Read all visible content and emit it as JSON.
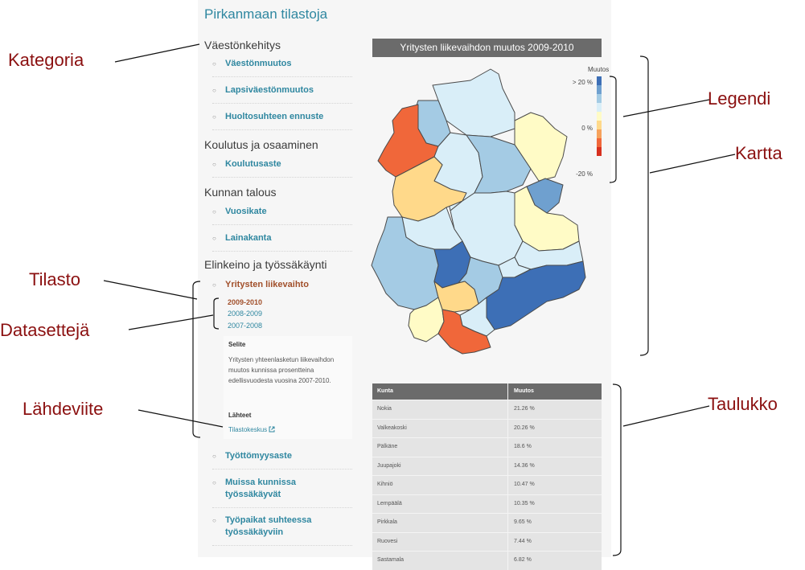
{
  "page": {
    "title": "Pirkanmaan tilastoja"
  },
  "sidebar": {
    "categories": [
      {
        "name": "Väestönkehitys"
      },
      {
        "name": "Koulutus ja osaaminen"
      },
      {
        "name": "Kunnan talous"
      },
      {
        "name": "Elinkeino ja työssäkäynti"
      }
    ],
    "items": [
      {
        "label": "Väestönmuutos"
      },
      {
        "label": "Lapsiväestönmuutos"
      },
      {
        "label": "Huoltosuhteen ennuste"
      },
      {
        "label": "Koulutusaste"
      },
      {
        "label": "Vuosikate"
      },
      {
        "label": "Lainakanta"
      },
      {
        "label": "Yritysten liikevaihto"
      },
      {
        "label": "Työttömyysaste"
      },
      {
        "label": "Muissa kunnissa työssäkäyvät"
      },
      {
        "label": "Työpaikat suhteessa työssäkäyviin"
      }
    ],
    "datasets": [
      "2009-2010",
      "2008-2009",
      "2007-2008"
    ],
    "selected_dataset": "2009-2010",
    "selite_heading": "Selite",
    "selite_text": "Yritysten yhteenlasketun liikevaihdon muutos kunnissa prosentteina edellisvuodesta vuosina 2007-2010.",
    "sources_heading": "Lähteet",
    "source_link": "Tilastokeskus",
    "external_link_icon": "external-link-icon"
  },
  "map": {
    "title": "Yritysten liikevaihdon muutos 2009-2010",
    "legend_title": "Muutos",
    "legend_labels": {
      "high": "> 20 %",
      "mid": "0 %",
      "low": "-20 %"
    },
    "legend_colors": [
      "#3d6fb6",
      "#6fa0cf",
      "#a4cbe4",
      "#d9eef8",
      "#fffbc6",
      "#ffd98a",
      "#f6a25c",
      "#f0673a",
      "#d7301f"
    ]
  },
  "table": {
    "headers": [
      "Kunta",
      "Muutos"
    ],
    "rows": [
      [
        "Nokia",
        "21.26 %"
      ],
      [
        "Valkeakoski",
        "20.26 %"
      ],
      [
        "Pälkäne",
        "18.6 %"
      ],
      [
        "Juupajoki",
        "14.36 %"
      ],
      [
        "Kihniö",
        "10.47 %"
      ],
      [
        "Lempäälä",
        "10.35 %"
      ],
      [
        "Pirkkala",
        "9.65 %"
      ],
      [
        "Ruovesi",
        "7.44 %"
      ],
      [
        "Sastamala",
        "6.82 %"
      ]
    ]
  },
  "annotations": [
    "Kategoria",
    "Legendi",
    "Kartta",
    "Tilasto",
    "Datasettejä",
    "Lähdeviite",
    "Taulukko"
  ]
}
